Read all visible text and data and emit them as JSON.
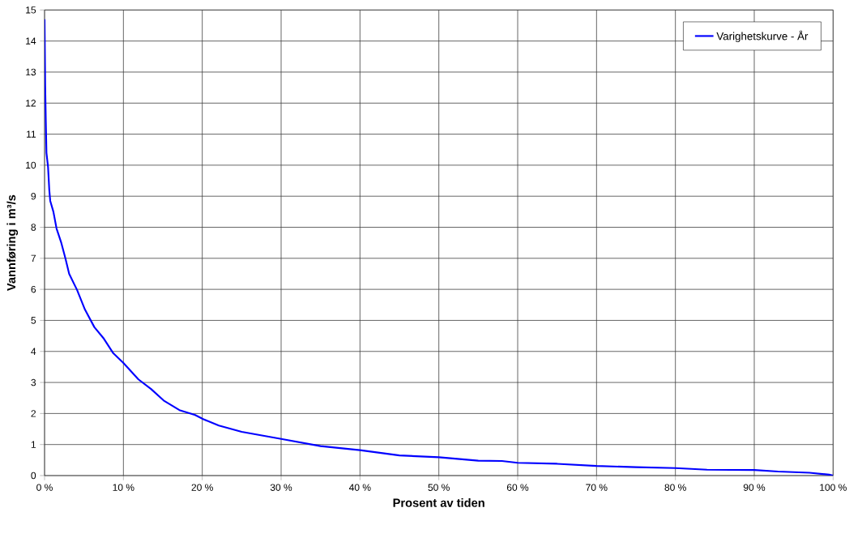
{
  "chart_data": {
    "type": "line",
    "xlabel": "Prosent av tiden",
    "ylabel": "Vannføring i m³/s",
    "x": [
      0,
      0.08,
      0.16,
      0.24,
      0.44,
      0.6,
      0.72,
      1.12,
      1.52,
      2.12,
      2.64,
      3.12,
      4.12,
      5.12,
      6.32,
      7.52,
      8.72,
      10,
      11.9,
      13.5,
      15.1,
      17.1,
      19.1,
      20.1,
      22.1,
      25,
      30,
      35,
      40,
      45,
      50,
      55,
      58,
      60,
      65,
      70,
      75,
      80,
      84,
      90,
      93,
      97,
      99.5,
      100
    ],
    "series": [
      {
        "name": "Varighetskurve - År",
        "color": "#0000ff",
        "values": [
          14.7,
          12.55,
          11.4,
          10.4,
          9.95,
          9.2,
          8.85,
          8.5,
          7.96,
          7.5,
          7.0,
          6.5,
          5.98,
          5.35,
          4.78,
          4.41,
          3.94,
          3.63,
          3.1,
          2.79,
          2.42,
          2.11,
          1.95,
          1.82,
          1.61,
          1.41,
          1.18,
          0.95,
          0.82,
          0.65,
          0.59,
          0.48,
          0.47,
          0.41,
          0.38,
          0.31,
          0.27,
          0.24,
          0.19,
          0.18,
          0.13,
          0.09,
          0.03,
          0
        ]
      }
    ],
    "xlim": [
      0,
      100
    ],
    "ylim": [
      0,
      15
    ],
    "xticks": [
      {
        "value": 0,
        "label": "0 %"
      },
      {
        "value": 10,
        "label": "10 %"
      },
      {
        "value": 20,
        "label": "20 %"
      },
      {
        "value": 30,
        "label": "30 %"
      },
      {
        "value": 40,
        "label": "40 %"
      },
      {
        "value": 50,
        "label": "50 %"
      },
      {
        "value": 60,
        "label": "60 %"
      },
      {
        "value": 70,
        "label": "70 %"
      },
      {
        "value": 80,
        "label": "80 %"
      },
      {
        "value": 90,
        "label": "90 %"
      },
      {
        "value": 100,
        "label": "100 %"
      }
    ],
    "yticks": [
      0,
      1,
      2,
      3,
      4,
      5,
      6,
      7,
      8,
      9,
      10,
      11,
      12,
      13,
      14,
      15
    ],
    "grid": true,
    "legend": "top right",
    "marker": "none",
    "line_style": "solid"
  }
}
